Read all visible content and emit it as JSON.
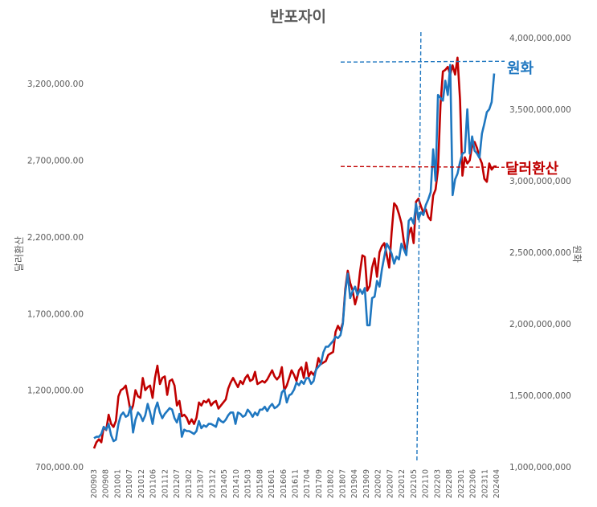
{
  "chart_data": {
    "type": "line",
    "title": "반포자이",
    "ylabel_left": "달러환산",
    "ylabel_right": "원화",
    "y_left": {
      "min": 700000,
      "max": 3500000,
      "ticks": [
        700000,
        1200000,
        1700000,
        2200000,
        2700000,
        3200000
      ],
      "tick_labels": [
        "700,000.00",
        "1,200,000.00",
        "1,700,000.00",
        "2,200,000.00",
        "2,700,000.00",
        "3,200,000.00"
      ]
    },
    "y_right": {
      "min": 1000000000,
      "max": 4000000000,
      "ticks": [
        1000000000,
        1500000000,
        2000000000,
        2500000000,
        3000000000,
        3500000000,
        4000000000
      ],
      "tick_labels": [
        "1,000,000,000",
        "1,500,000,000",
        "2,000,000,000",
        "2,500,000,000",
        "3,000,000,000",
        "3,500,000,000",
        "4,000,000,000"
      ]
    },
    "x_labels": [
      "200903",
      "200908",
      "201001",
      "201007",
      "201012",
      "201106",
      "201112",
      "201207",
      "201302",
      "201307",
      "201312",
      "201405",
      "201410",
      "201503",
      "201508",
      "201601",
      "201606",
      "201611",
      "201704",
      "201709",
      "201802",
      "201807",
      "201904",
      "201909",
      "202002",
      "202007",
      "202012",
      "202105",
      "202110",
      "202203",
      "202208",
      "202301",
      "202306",
      "202311",
      "202404"
    ],
    "annotations": [
      {
        "text": "원화",
        "color": "#1f77c0",
        "value_right": 3830000000
      },
      {
        "text": "달러환산",
        "color": "#c00000",
        "value_left": 2660000
      }
    ],
    "marker_label": "202105",
    "series": [
      {
        "name": "달러환산",
        "axis": "left",
        "color": "#c00000",
        "values": [
          820000,
          860000,
          880000,
          860000,
          960000,
          940000,
          1040000,
          980000,
          960000,
          1000000,
          1160000,
          1200000,
          1210000,
          1230000,
          1150000,
          1060000,
          1100000,
          1200000,
          1160000,
          1150000,
          1280000,
          1200000,
          1220000,
          1230000,
          1150000,
          1280000,
          1360000,
          1240000,
          1280000,
          1290000,
          1170000,
          1260000,
          1270000,
          1230000,
          1100000,
          1130000,
          1030000,
          1040000,
          1020000,
          980000,
          1010000,
          980000,
          1020000,
          1120000,
          1100000,
          1130000,
          1120000,
          1140000,
          1100000,
          1120000,
          1130000,
          1080000,
          1100000,
          1120000,
          1140000,
          1210000,
          1250000,
          1280000,
          1250000,
          1220000,
          1260000,
          1240000,
          1280000,
          1300000,
          1260000,
          1270000,
          1320000,
          1240000,
          1250000,
          1260000,
          1250000,
          1270000,
          1300000,
          1330000,
          1290000,
          1270000,
          1290000,
          1350000,
          1200000,
          1230000,
          1280000,
          1330000,
          1300000,
          1260000,
          1330000,
          1350000,
          1280000,
          1380000,
          1290000,
          1320000,
          1300000,
          1330000,
          1410000,
          1370000,
          1380000,
          1390000,
          1430000,
          1440000,
          1450000,
          1580000,
          1620000,
          1590000,
          1640000,
          1860000,
          1980000,
          1900000,
          1850000,
          1760000,
          1820000,
          1970000,
          2080000,
          2070000,
          1850000,
          1880000,
          2000000,
          2060000,
          1940000,
          2100000,
          2140000,
          2160000,
          2080000,
          2000000,
          2230000,
          2420000,
          2400000,
          2350000,
          2290000,
          2170000,
          2100000,
          2220000,
          2260000,
          2160000,
          2430000,
          2450000,
          2400000,
          2360000,
          2380000,
          2330000,
          2310000,
          2470000,
          2510000,
          2640000,
          3060000,
          3280000,
          3290000,
          3310000,
          3260000,
          3320000,
          3260000,
          3370000,
          3100000,
          2600000,
          2720000,
          2680000,
          2700000,
          2800000,
          2820000,
          2780000,
          2720000,
          2680000,
          2580000,
          2560000,
          2680000,
          2640000,
          2660000,
          2660000
        ]
      },
      {
        "name": "원화",
        "axis": "right",
        "color": "#1f77c0",
        "values": [
          1200000000,
          1210000000,
          1210000000,
          1230000000,
          1280000000,
          1260000000,
          1300000000,
          1220000000,
          1180000000,
          1190000000,
          1300000000,
          1360000000,
          1380000000,
          1350000000,
          1360000000,
          1420000000,
          1240000000,
          1330000000,
          1380000000,
          1360000000,
          1320000000,
          1360000000,
          1440000000,
          1380000000,
          1300000000,
          1400000000,
          1450000000,
          1380000000,
          1340000000,
          1370000000,
          1390000000,
          1410000000,
          1400000000,
          1340000000,
          1310000000,
          1370000000,
          1210000000,
          1260000000,
          1250000000,
          1250000000,
          1240000000,
          1230000000,
          1250000000,
          1320000000,
          1270000000,
          1290000000,
          1280000000,
          1300000000,
          1300000000,
          1290000000,
          1280000000,
          1340000000,
          1320000000,
          1310000000,
          1330000000,
          1360000000,
          1380000000,
          1380000000,
          1300000000,
          1380000000,
          1370000000,
          1350000000,
          1360000000,
          1400000000,
          1380000000,
          1350000000,
          1380000000,
          1360000000,
          1400000000,
          1400000000,
          1420000000,
          1390000000,
          1420000000,
          1440000000,
          1410000000,
          1420000000,
          1440000000,
          1520000000,
          1540000000,
          1450000000,
          1500000000,
          1510000000,
          1540000000,
          1590000000,
          1570000000,
          1600000000,
          1580000000,
          1620000000,
          1620000000,
          1580000000,
          1600000000,
          1680000000,
          1700000000,
          1720000000,
          1800000000,
          1840000000,
          1840000000,
          1860000000,
          1880000000,
          1910000000,
          1900000000,
          1920000000,
          2000000000,
          2220000000,
          2350000000,
          2180000000,
          2230000000,
          2260000000,
          2200000000,
          2240000000,
          2210000000,
          2250000000,
          1990000000,
          1990000000,
          2180000000,
          2190000000,
          2300000000,
          2260000000,
          2380000000,
          2470000000,
          2560000000,
          2530000000,
          2490000000,
          2420000000,
          2470000000,
          2450000000,
          2560000000,
          2520000000,
          2480000000,
          2720000000,
          2740000000,
          2700000000,
          2840000000,
          2730000000,
          2780000000,
          2760000000,
          2830000000,
          2870000000,
          2920000000,
          3220000000,
          3000000000,
          3600000000,
          3580000000,
          3560000000,
          3700000000,
          3600000000,
          3810000000,
          2900000000,
          3010000000,
          3050000000,
          3130000000,
          3190000000,
          3200000000,
          3500000000,
          3190000000,
          3310000000,
          3210000000,
          3190000000,
          3160000000,
          3330000000,
          3400000000,
          3480000000,
          3500000000,
          3550000000,
          3750000000
        ]
      }
    ]
  }
}
